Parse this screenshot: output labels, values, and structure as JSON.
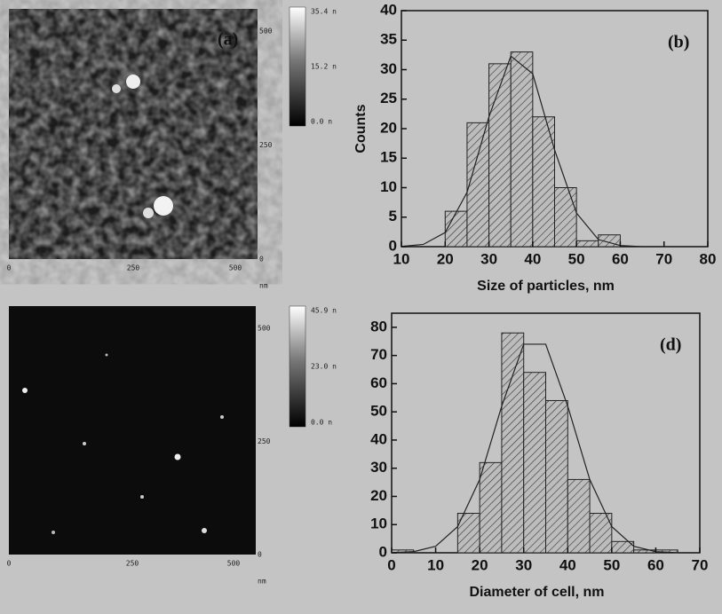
{
  "images": [
    {
      "label": "(a)",
      "x_ticks": [
        "0",
        "250",
        "500"
      ],
      "y_ticks": [
        "500",
        "250",
        "0"
      ],
      "unit": "nm",
      "colorbar": [
        "35.4 n",
        "15.2 n",
        "0.0 n"
      ]
    },
    {
      "x_ticks": [
        "0",
        "250",
        "500"
      ],
      "y_ticks": [
        "500",
        "250",
        "0"
      ],
      "unit": "nm",
      "colorbar": [
        "45.9 n",
        "23.0 n",
        "0.0 n"
      ]
    }
  ],
  "chart_data": [
    {
      "type": "histogram",
      "label": "(b)",
      "y_label": "Counts",
      "x_label": "Size of particles, nm",
      "bins": [
        20,
        25,
        30,
        35,
        40,
        45,
        50,
        55,
        60
      ],
      "values": [
        6,
        21,
        31,
        33,
        22,
        10,
        1,
        2
      ],
      "color": "#b8b8b8",
      "hatch": true,
      "fit": {
        "x": [
          10,
          15,
          20,
          25,
          30,
          35,
          40,
          45,
          50,
          55,
          60,
          65
        ],
        "values": [
          0.04,
          0.38,
          2.4,
          9.2,
          22,
          32.3,
          29.3,
          16.4,
          5.7,
          1.2,
          0.2,
          0
        ]
      },
      "xlim": [
        10,
        80
      ],
      "ylim": [
        0,
        40
      ],
      "xticks": [
        10,
        20,
        30,
        40,
        50,
        60,
        70,
        80
      ],
      "yticks": [
        0,
        5,
        10,
        15,
        20,
        25,
        30,
        35,
        40
      ]
    },
    {
      "type": "histogram",
      "label": "(d)",
      "x_label": "Diameter of cell, nm",
      "bins": [
        0,
        5,
        10,
        15,
        20,
        25,
        30,
        35,
        40,
        45,
        50,
        55,
        60,
        65
      ],
      "values": [
        1,
        0,
        0,
        14,
        32,
        78,
        64,
        54,
        26,
        14,
        4,
        1,
        1
      ],
      "color": "#b8b8b8",
      "hatch": true,
      "fit": {
        "x": [
          0,
          5,
          10,
          15,
          20,
          25,
          30,
          35,
          40,
          45,
          50,
          55,
          60,
          65
        ],
        "values": [
          0.05,
          0.4,
          2.3,
          9.3,
          26,
          52,
          74,
          74,
          52,
          26,
          9.3,
          2.3,
          0.4,
          0.05
        ]
      },
      "xlim": [
        0,
        70
      ],
      "ylim": [
        0,
        85
      ],
      "xticks": [
        0,
        10,
        20,
        30,
        40,
        50,
        60,
        70
      ],
      "yticks": [
        0,
        10,
        20,
        30,
        40,
        50,
        60,
        70,
        80
      ]
    }
  ]
}
